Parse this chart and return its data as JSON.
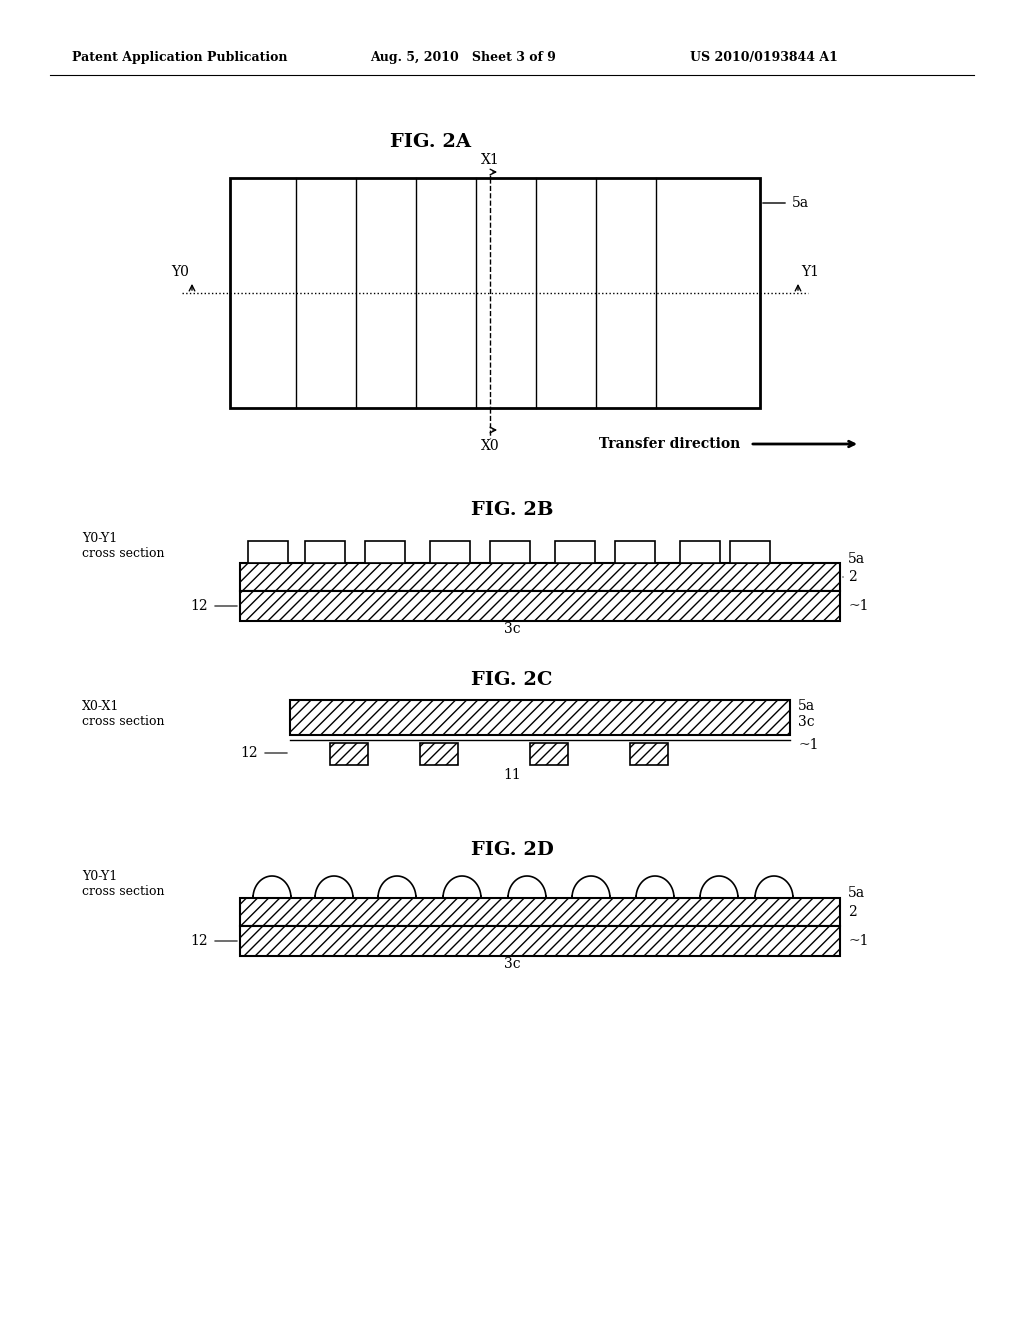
{
  "bg_color": "#ffffff",
  "header_left": "Patent Application Publication",
  "header_mid": "Aug. 5, 2010   Sheet 3 of 9",
  "header_right": "US 2010/0193844 A1",
  "fig2a_title": "FIG. 2A",
  "fig2b_title": "FIG. 2B",
  "fig2c_title": "FIG. 2C",
  "fig2d_title": "FIG. 2D",
  "line_color": "#000000"
}
